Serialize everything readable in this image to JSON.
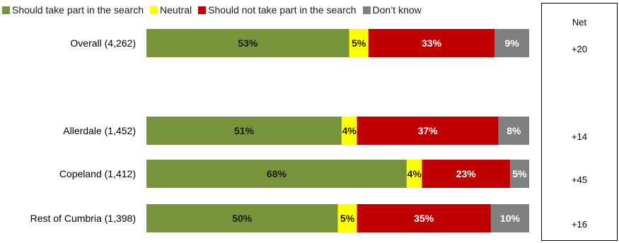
{
  "legend": [
    {
      "label": "Should take part in the search",
      "color": "#77933c"
    },
    {
      "label": "Neutral",
      "color": "#ffff00"
    },
    {
      "label": "Should not take part in the search",
      "color": "#c00000"
    },
    {
      "label": "Don’t know",
      "color": "#808080"
    }
  ],
  "net": {
    "header": "Net",
    "values": [
      "+20",
      "+14",
      "+45",
      "+16"
    ]
  },
  "chart_data": {
    "type": "bar",
    "orientation": "horizontal",
    "stacked": true,
    "percent": true,
    "categories": [
      "Overall (4,262)",
      "Allerdale (1,452)",
      "Copeland (1,412)",
      "Rest of Cumbria (1,398)"
    ],
    "series": [
      {
        "name": "Should take part in the search",
        "color": "#77933c",
        "label_color": "#1a1a1a",
        "values": [
          53,
          51,
          68,
          50
        ]
      },
      {
        "name": "Neutral",
        "color": "#ffff00",
        "label_color": "#1a1a1a",
        "values": [
          5,
          4,
          4,
          5
        ]
      },
      {
        "name": "Should not take part in the search",
        "color": "#c00000",
        "label_color": "#ffffff",
        "values": [
          33,
          37,
          23,
          35
        ]
      },
      {
        "name": "Don’t know",
        "color": "#808080",
        "label_color": "#ffffff",
        "values": [
          9,
          8,
          5,
          10
        ]
      }
    ],
    "legend_position": "top",
    "grid": false
  }
}
